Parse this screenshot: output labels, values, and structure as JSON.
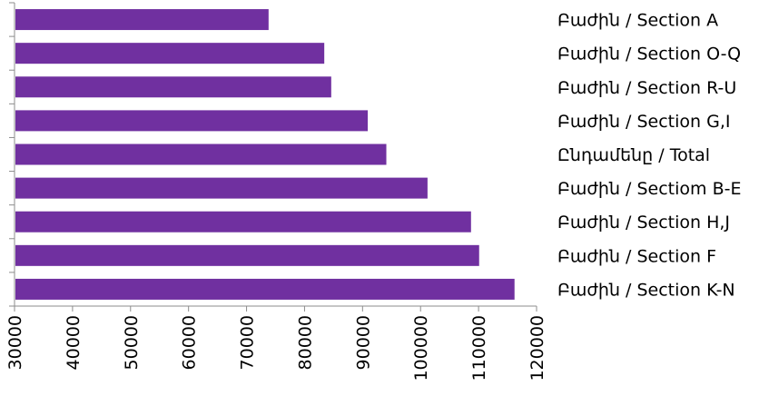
{
  "chart_data": {
    "type": "bar",
    "orientation": "horizontal",
    "categories": [
      "Բաժին /  Section A",
      "Բաժին / Section O-Q",
      "Բաժին / Section R-U",
      "Բաժին / Section G,I",
      "Ընդամենը / Total",
      "Բաժին / Sectiom B-E",
      "Բաժին / Section H,J",
      "Բաժին / Section F",
      "Բաժին / Section K-N"
    ],
    "values": [
      73800,
      83400,
      84600,
      90900,
      94100,
      101200,
      108700,
      110100,
      116200
    ],
    "xlim": [
      30000,
      120000
    ],
    "x_ticks": [
      "30000",
      "40000",
      "50000",
      "60000",
      "70000",
      "80000",
      "90000",
      "100000",
      "110000",
      "120000"
    ],
    "bar_color": "#7030a0",
    "grid": false,
    "legend": "none",
    "title": "",
    "xlabel": "",
    "ylabel": ""
  }
}
